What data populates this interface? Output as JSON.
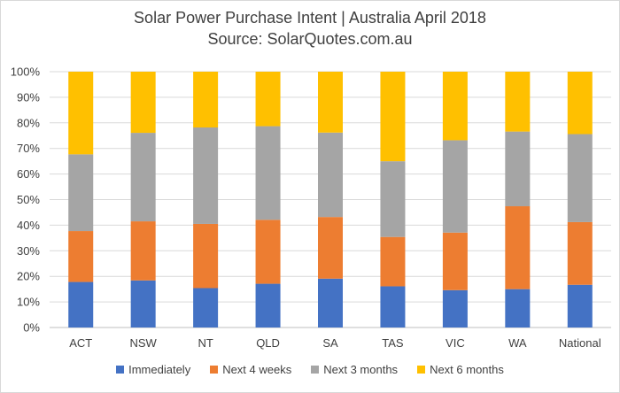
{
  "chart_data": {
    "type": "bar",
    "stacked": true,
    "title": "Solar Power Purchase Intent | Australia April 2018",
    "subtitle": "Source: SolarQuotes.com.au",
    "categories": [
      "ACT",
      "NSW",
      "NT",
      "QLD",
      "SA",
      "TAS",
      "VIC",
      "WA",
      "National"
    ],
    "y_tick_labels": [
      "0%",
      "10%",
      "20%",
      "30%",
      "40%",
      "50%",
      "60%",
      "70%",
      "80%",
      "90%",
      "100%"
    ],
    "ylim": [
      0,
      100
    ],
    "grid": true,
    "legend_position": "bottom",
    "series": [
      {
        "name": "Immediately",
        "color": "#4472C4",
        "values": [
          17.8,
          18.4,
          15.4,
          17.1,
          19.1,
          16.1,
          14.6,
          15.0,
          16.7
        ]
      },
      {
        "name": "Next 4 weeks",
        "color": "#ED7D31",
        "values": [
          19.9,
          23.1,
          25.1,
          25.0,
          24.1,
          19.3,
          22.5,
          32.4,
          24.5
        ]
      },
      {
        "name": "Next 3 months",
        "color": "#A5A5A5",
        "values": [
          30.0,
          34.6,
          37.7,
          36.6,
          33.0,
          29.6,
          36.1,
          29.2,
          34.4
        ]
      },
      {
        "name": "Next 6 months",
        "color": "#FFC000",
        "values": [
          32.3,
          23.9,
          21.8,
          21.3,
          23.8,
          35.0,
          26.8,
          23.4,
          24.4
        ]
      }
    ]
  }
}
